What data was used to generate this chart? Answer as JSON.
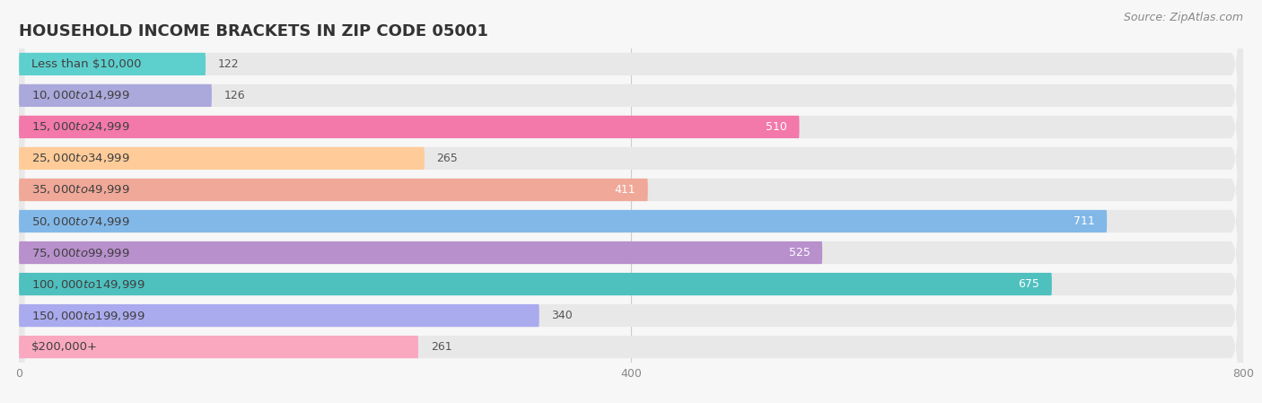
{
  "title": "HOUSEHOLD INCOME BRACKETS IN ZIP CODE 05001",
  "source": "Source: ZipAtlas.com",
  "categories": [
    "Less than $10,000",
    "$10,000 to $14,999",
    "$15,000 to $24,999",
    "$25,000 to $34,999",
    "$35,000 to $49,999",
    "$50,000 to $74,999",
    "$75,000 to $99,999",
    "$100,000 to $149,999",
    "$150,000 to $199,999",
    "$200,000+"
  ],
  "values": [
    122,
    126,
    510,
    265,
    411,
    711,
    525,
    675,
    340,
    261
  ],
  "bar_colors": [
    "#5DD0CE",
    "#ABA8DC",
    "#F279AA",
    "#FFCC99",
    "#F0A898",
    "#82B8E8",
    "#B890CC",
    "#4EC0BE",
    "#AAAAEE",
    "#F9A8C0"
  ],
  "background_color": "#f7f7f7",
  "bar_bg_color": "#e8e8e8",
  "xlim_max": 800,
  "xticks": [
    0,
    400,
    800
  ],
  "title_fontsize": 13,
  "label_fontsize": 9.5,
  "value_fontsize": 9,
  "source_fontsize": 9
}
